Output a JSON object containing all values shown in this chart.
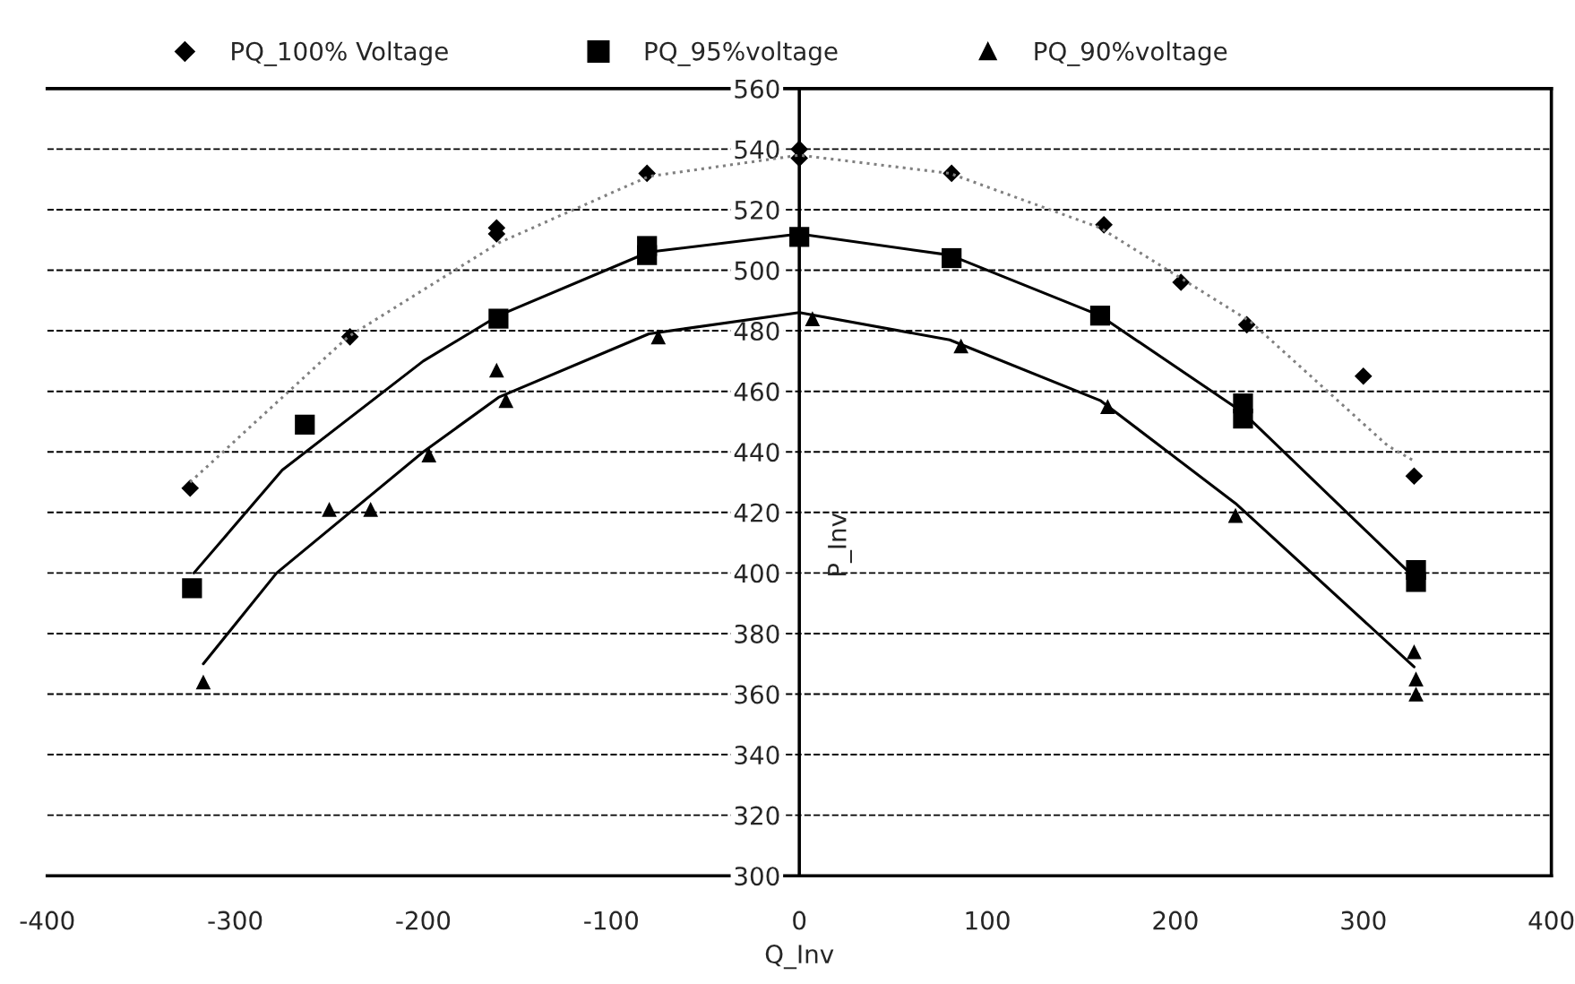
{
  "chart_data": {
    "type": "scatter",
    "xlabel": "Q_Inv",
    "ylabel": "P_Inv",
    "xlim": [
      -400,
      400
    ],
    "xticks": [
      -400,
      -300,
      -200,
      -100,
      0,
      100,
      200,
      300,
      400
    ],
    "ylim": [
      300,
      560
    ],
    "yticks": [
      300,
      320,
      340,
      360,
      380,
      400,
      420,
      440,
      460,
      480,
      500,
      520,
      540,
      560
    ],
    "grid": "y",
    "legend": "top",
    "series": [
      {
        "name": "PQ_100% Voltage",
        "color": "#000000",
        "marker": "diamond",
        "x": [
          -324,
          -239,
          -161,
          -161,
          -81,
          0,
          0,
          81,
          162,
          203,
          238,
          300,
          327
        ],
        "values": [
          428,
          478,
          512,
          514,
          532,
          537,
          540,
          532,
          515,
          496,
          482,
          465,
          432
        ]
      },
      {
        "name": "PQ_95%voltage",
        "color": "#000000",
        "marker": "square",
        "x": [
          -323,
          -263,
          -160,
          -81,
          -81,
          0,
          81,
          160,
          236,
          236,
          328,
          328
        ],
        "values": [
          395,
          449,
          484,
          505,
          508,
          511,
          504,
          485,
          451,
          456,
          397,
          401
        ]
      },
      {
        "name": "PQ_90%voltage",
        "color": "#000000",
        "marker": "triangle",
        "x": [
          -317,
          -250,
          -228,
          -197,
          -161,
          -156,
          -75,
          7,
          86,
          164,
          232,
          327,
          328,
          328
        ],
        "values": [
          364,
          421,
          421,
          439,
          467,
          457,
          478,
          484,
          475,
          455,
          419,
          374,
          365,
          360
        ]
      },
      {
        "type": "line",
        "color": "#808080",
        "line_style": "dotted",
        "marker": "none",
        "x": [
          -324,
          -240,
          -160,
          -80,
          0,
          80,
          160,
          240,
          313,
          327
        ],
        "values": [
          430,
          478,
          509,
          531,
          538,
          532,
          514,
          483,
          442,
          437
        ]
      },
      {
        "type": "line",
        "color": "#000000",
        "line_style": "solid",
        "marker": "none",
        "x": [
          -322,
          -275,
          -200,
          -160,
          -80,
          0,
          80,
          160,
          236,
          328
        ],
        "values": [
          400,
          434,
          470,
          485,
          506,
          512,
          505,
          485,
          453,
          398
        ]
      },
      {
        "type": "line",
        "color": "#000000",
        "line_style": "solid",
        "marker": "none",
        "x": [
          -317,
          -278,
          -200,
          -160,
          -80,
          0,
          80,
          160,
          232,
          327
        ],
        "values": [
          370,
          400,
          440,
          458,
          479,
          486,
          477,
          457,
          423,
          369
        ]
      }
    ]
  }
}
